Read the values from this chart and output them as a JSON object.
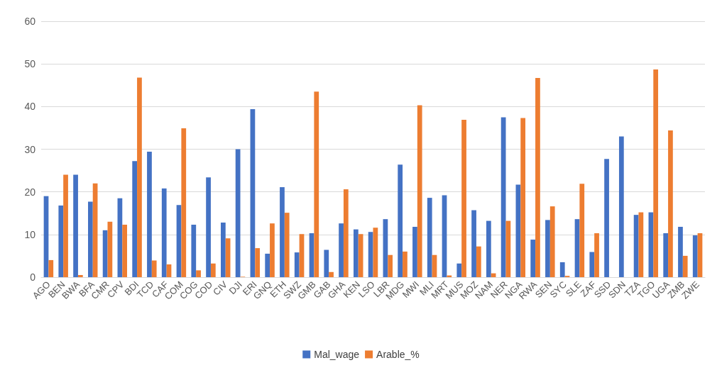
{
  "chart_data": {
    "type": "bar",
    "categories": [
      "AGO",
      "BEN",
      "BWA",
      "BFA",
      "CMR",
      "CPV",
      "BDI",
      "TCD",
      "CAF",
      "COM",
      "COG",
      "COD",
      "CIV",
      "DJI",
      "ERI",
      "GNQ",
      "ETH",
      "SWZ",
      "GMB",
      "GAB",
      "GHA",
      "KEN",
      "LSO",
      "LBR",
      "MDG",
      "MWI",
      "MLI",
      "MRT",
      "MUS",
      "MOZ",
      "NAM",
      "NER",
      "NGA",
      "RWA",
      "SEN",
      "SYC",
      "SLE",
      "ZAF",
      "SSD",
      "SDN",
      "TZA",
      "TGO",
      "UGA",
      "ZMB",
      "ZWE"
    ],
    "series": [
      {
        "name": "Mal_wage",
        "color": "#4472c4",
        "values": [
          19,
          16.8,
          24,
          17.7,
          11,
          18.5,
          27.2,
          29.4,
          20.8,
          16.9,
          12.3,
          23.4,
          12.8,
          30,
          39.4,
          5.5,
          21.1,
          5.8,
          10.3,
          6.4,
          12.6,
          11.2,
          10.6,
          13.6,
          26.4,
          11.8,
          18.6,
          19.2,
          3.2,
          15.7,
          13.2,
          37.5,
          21.7,
          8.8,
          13.4,
          3.5,
          13.6,
          5.9,
          27.7,
          33,
          14.6,
          15.2,
          10.3,
          11.8,
          9.8
        ]
      },
      {
        "name": "Arable_%",
        "color": "#ed7d31",
        "values": [
          4,
          24,
          0.5,
          22,
          13,
          12.3,
          46.8,
          3.9,
          3,
          34.9,
          1.6,
          3.2,
          9.1,
          0.1,
          6.8,
          12.6,
          15.1,
          10.1,
          43.5,
          1.2,
          20.6,
          10.1,
          11.6,
          5.2,
          6,
          40.3,
          5.2,
          0.4,
          36.9,
          7.2,
          0.9,
          13.2,
          37.3,
          46.7,
          16.6,
          0.3,
          21.9,
          10.3,
          null,
          null,
          15.2,
          48.7,
          34.4,
          5,
          10.3
        ]
      }
    ],
    "ylim": [
      0,
      60
    ],
    "yticks": [
      0,
      10,
      20,
      30,
      40,
      50,
      60
    ],
    "grid": "y",
    "legend": "bottom"
  }
}
